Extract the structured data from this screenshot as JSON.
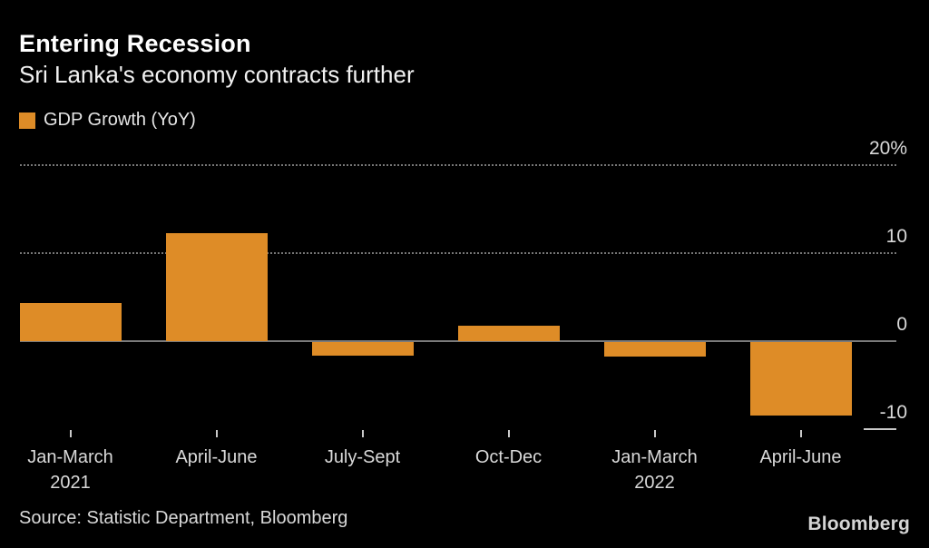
{
  "header": {
    "title": "Entering Recession",
    "subtitle": "Sri Lanka's economy contracts further"
  },
  "legend": {
    "label": "GDP Growth (YoY)",
    "swatch_color": "#de8c27"
  },
  "footer": {
    "source": "Source: Statistic Department, Bloomberg",
    "logo": "Bloomberg"
  },
  "chart_data": {
    "type": "bar",
    "title": "Entering Recession",
    "subtitle": "Sri Lanka's economy contracts further",
    "series_name": "GDP Growth (YoY)",
    "categories": [
      [
        "Jan-March",
        "2021"
      ],
      [
        "April-June"
      ],
      [
        "July-Sept"
      ],
      [
        "Oct-Dec"
      ],
      [
        "Jan-March",
        "2022"
      ],
      [
        "April-June"
      ]
    ],
    "values": [
      4.3,
      12.3,
      -1.5,
      1.8,
      -1.6,
      -8.4
    ],
    "unit": "%",
    "bar_color": "#de8c27",
    "background_color": "#000000",
    "grid": "horizontal-dotted",
    "legend_position": "top-left",
    "yaxis": {
      "label_side": "right",
      "range": [
        -10,
        20
      ],
      "gridlines": [
        {
          "value": 20,
          "label": "20%",
          "style": "dotted"
        },
        {
          "value": 10,
          "label": "10",
          "style": "dotted"
        },
        {
          "value": 0,
          "label": "0",
          "style": "solid"
        },
        {
          "value": -10,
          "label": "-10",
          "style": "short"
        }
      ]
    }
  }
}
